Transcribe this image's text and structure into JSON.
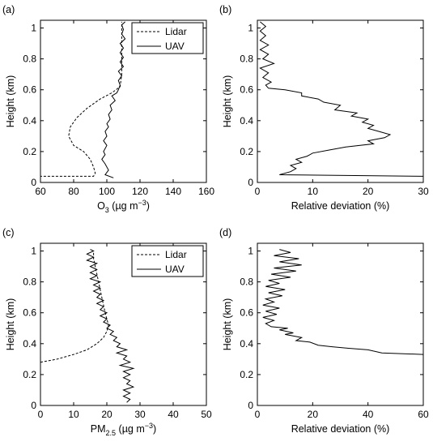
{
  "chart_data": [
    {
      "panel": "(a)",
      "type": "line",
      "xlabel": "O3 (µg m−3)",
      "xlabel_parts": {
        "main": "O",
        "sub": "3",
        "tail": " (µg m",
        "sup": "−3",
        "end": ")"
      },
      "ylabel": "Height (km)",
      "xlim": [
        60,
        160
      ],
      "ylim": [
        0,
        1.05
      ],
      "xticks": [
        "60",
        "80",
        "100",
        "120",
        "140",
        "160"
      ],
      "yticks": [
        "0",
        "0.2",
        "0.4",
        "0.6",
        "0.8",
        "1"
      ],
      "legend": [
        "Lidar",
        "UAV"
      ],
      "legend_position": "top-right",
      "series": [
        {
          "name": "Lidar",
          "style": "dashed",
          "points": [
            [
              57,
              0.04
            ],
            [
              92,
              0.04
            ],
            [
              93,
              0.06
            ],
            [
              92,
              0.1
            ],
            [
              90,
              0.15
            ],
            [
              86,
              0.2
            ],
            [
              80,
              0.24
            ],
            [
              77,
              0.3
            ],
            [
              78,
              0.36
            ],
            [
              82,
              0.42
            ],
            [
              88,
              0.48
            ],
            [
              96,
              0.54
            ],
            [
              103,
              0.58
            ],
            [
              108,
              0.62
            ],
            [
              109,
              0.7
            ],
            [
              109,
              0.8
            ],
            [
              109,
              0.9
            ],
            [
              109,
              1.0
            ],
            [
              109,
              1.04
            ]
          ]
        },
        {
          "name": "UAV",
          "style": "solid",
          "points": [
            [
              104,
              0.03
            ],
            [
              99,
              0.05
            ],
            [
              101,
              0.08
            ],
            [
              99,
              0.12
            ],
            [
              97,
              0.15
            ],
            [
              99,
              0.18
            ],
            [
              98,
              0.2
            ],
            [
              100,
              0.24
            ],
            [
              98,
              0.27
            ],
            [
              100,
              0.3
            ],
            [
              99,
              0.33
            ],
            [
              101,
              0.36
            ],
            [
              100,
              0.38
            ],
            [
              102,
              0.41
            ],
            [
              101,
              0.44
            ],
            [
              103,
              0.47
            ],
            [
              102,
              0.5
            ],
            [
              105,
              0.53
            ],
            [
              103,
              0.56
            ],
            [
              106,
              0.58
            ],
            [
              107,
              0.6
            ],
            [
              108,
              0.63
            ],
            [
              107,
              0.66
            ],
            [
              109,
              0.69
            ],
            [
              107,
              0.72
            ],
            [
              110,
              0.75
            ],
            [
              108,
              0.78
            ],
            [
              110,
              0.81
            ],
            [
              108,
              0.84
            ],
            [
              110,
              0.87
            ],
            [
              108,
              0.9
            ],
            [
              111,
              0.93
            ],
            [
              109,
              0.96
            ],
            [
              110,
              0.99
            ],
            [
              109,
              1.02
            ],
            [
              111,
              1.04
            ]
          ]
        }
      ]
    },
    {
      "panel": "(b)",
      "type": "line",
      "xlabel": "Relative deviation (%)",
      "ylabel": "Height (km)",
      "xlim": [
        0,
        30
      ],
      "ylim": [
        0,
        1.05
      ],
      "xticks": [
        "0",
        "10",
        "20",
        "30"
      ],
      "yticks": [
        "0",
        "0.2",
        "0.4",
        "0.6",
        "0.8",
        "1"
      ],
      "series": [
        {
          "name": "",
          "style": "solid",
          "points": [
            [
              30,
              0.04
            ],
            [
              4,
              0.05
            ],
            [
              6,
              0.07
            ],
            [
              7,
              0.09
            ],
            [
              6,
              0.11
            ],
            [
              8,
              0.13
            ],
            [
              7,
              0.15
            ],
            [
              9,
              0.17
            ],
            [
              10,
              0.19
            ],
            [
              13,
              0.21
            ],
            [
              16,
              0.23
            ],
            [
              21,
              0.25
            ],
            [
              20,
              0.27
            ],
            [
              23,
              0.29
            ],
            [
              24,
              0.31
            ],
            [
              22,
              0.33
            ],
            [
              20,
              0.35
            ],
            [
              21,
              0.37
            ],
            [
              19,
              0.39
            ],
            [
              20,
              0.41
            ],
            [
              17,
              0.43
            ],
            [
              18,
              0.45
            ],
            [
              14,
              0.47
            ],
            [
              15,
              0.5
            ],
            [
              12,
              0.52
            ],
            [
              11,
              0.54
            ],
            [
              8,
              0.56
            ],
            [
              8,
              0.58
            ],
            [
              5,
              0.6
            ],
            [
              2,
              0.61
            ],
            [
              1.5,
              0.63
            ],
            [
              2.5,
              0.65
            ],
            [
              1,
              0.68
            ],
            [
              2,
              0.71
            ],
            [
              0.5,
              0.74
            ],
            [
              3,
              0.77
            ],
            [
              1,
              0.8
            ],
            [
              2,
              0.83
            ],
            [
              0.5,
              0.86
            ],
            [
              2,
              0.89
            ],
            [
              0.5,
              0.92
            ],
            [
              1.5,
              0.95
            ],
            [
              0.5,
              0.98
            ],
            [
              1.5,
              1.01
            ],
            [
              0.5,
              1.04
            ]
          ]
        }
      ]
    },
    {
      "panel": "(c)",
      "type": "line",
      "xlabel": "PM2.5 (µg m−3)",
      "xlabel_parts": {
        "main": "PM",
        "sub": "2.5",
        "tail": " (µg m",
        "sup": "−3",
        "end": ")"
      },
      "ylabel": "Height (km)",
      "xlim": [
        0,
        50
      ],
      "ylim": [
        0,
        1.05
      ],
      "xticks": [
        "0",
        "10",
        "20",
        "30",
        "40",
        "50"
      ],
      "yticks": [
        "0",
        "0.2",
        "0.4",
        "0.6",
        "0.8",
        "1"
      ],
      "legend": [
        "Lidar",
        "UAV"
      ],
      "legend_position": "top-right",
      "series": [
        {
          "name": "Lidar",
          "style": "dashed",
          "points": [
            [
              0,
              0.28
            ],
            [
              5,
              0.3
            ],
            [
              10,
              0.33
            ],
            [
              14,
              0.36
            ],
            [
              17,
              0.4
            ],
            [
              19,
              0.44
            ],
            [
              20,
              0.48
            ],
            [
              20.5,
              0.52
            ],
            [
              20,
              0.56
            ],
            [
              19.5,
              0.6
            ],
            [
              19,
              0.65
            ],
            [
              18.5,
              0.7
            ],
            [
              18,
              0.75
            ],
            [
              17.5,
              0.8
            ],
            [
              17,
              0.85
            ],
            [
              16.5,
              0.9
            ],
            [
              16,
              0.95
            ],
            [
              16,
              1.0
            ]
          ]
        },
        {
          "name": "UAV",
          "style": "solid",
          "points": [
            [
              26,
              0.02
            ],
            [
              27,
              0.04
            ],
            [
              25,
              0.06
            ],
            [
              27,
              0.08
            ],
            [
              25,
              0.1
            ],
            [
              28,
              0.12
            ],
            [
              26,
              0.14
            ],
            [
              27,
              0.16
            ],
            [
              25,
              0.18
            ],
            [
              27,
              0.2
            ],
            [
              25,
              0.22
            ],
            [
              28,
              0.24
            ],
            [
              24,
              0.26
            ],
            [
              27,
              0.28
            ],
            [
              25,
              0.3
            ],
            [
              26,
              0.32
            ],
            [
              23,
              0.34
            ],
            [
              26,
              0.36
            ],
            [
              23,
              0.38
            ],
            [
              24,
              0.4
            ],
            [
              22,
              0.42
            ],
            [
              23,
              0.44
            ],
            [
              21,
              0.46
            ],
            [
              22,
              0.48
            ],
            [
              20,
              0.5
            ],
            [
              21,
              0.52
            ],
            [
              19,
              0.54
            ],
            [
              20,
              0.56
            ],
            [
              18,
              0.58
            ],
            [
              20,
              0.6
            ],
            [
              18,
              0.62
            ],
            [
              19,
              0.64
            ],
            [
              17,
              0.66
            ],
            [
              19,
              0.68
            ],
            [
              17,
              0.7
            ],
            [
              18,
              0.72
            ],
            [
              16,
              0.74
            ],
            [
              18,
              0.76
            ],
            [
              16,
              0.78
            ],
            [
              18,
              0.8
            ],
            [
              15,
              0.82
            ],
            [
              17,
              0.84
            ],
            [
              15,
              0.86
            ],
            [
              17,
              0.88
            ],
            [
              15,
              0.9
            ],
            [
              17,
              0.92
            ],
            [
              14,
              0.94
            ],
            [
              16,
              0.96
            ],
            [
              14,
              0.98
            ],
            [
              16,
              1.0
            ],
            [
              15,
              1.01
            ]
          ]
        }
      ]
    },
    {
      "panel": "(d)",
      "type": "line",
      "xlabel": "Relative deviation (%)",
      "ylabel": "Height (km)",
      "xlim": [
        0,
        60
      ],
      "ylim": [
        0,
        1.05
      ],
      "xticks": [
        "0",
        "20",
        "40",
        "60"
      ],
      "yticks": [
        "0",
        "0.2",
        "0.4",
        "0.6",
        "0.8",
        "1"
      ],
      "series": [
        {
          "name": "",
          "style": "solid",
          "points": [
            [
              60,
              0.33
            ],
            [
              45,
              0.34
            ],
            [
              40,
              0.36
            ],
            [
              33,
              0.37
            ],
            [
              27,
              0.38
            ],
            [
              22,
              0.39
            ],
            [
              19,
              0.41
            ],
            [
              14,
              0.42
            ],
            [
              16,
              0.44
            ],
            [
              10,
              0.46
            ],
            [
              13,
              0.47
            ],
            [
              8,
              0.49
            ],
            [
              11,
              0.5
            ],
            [
              5,
              0.51
            ],
            [
              3,
              0.53
            ],
            [
              6,
              0.55
            ],
            [
              2,
              0.57
            ],
            [
              7,
              0.59
            ],
            [
              3,
              0.61
            ],
            [
              8,
              0.63
            ],
            [
              2,
              0.65
            ],
            [
              6,
              0.67
            ],
            [
              3,
              0.69
            ],
            [
              9,
              0.71
            ],
            [
              4,
              0.73
            ],
            [
              10,
              0.75
            ],
            [
              3,
              0.77
            ],
            [
              8,
              0.79
            ],
            [
              4,
              0.81
            ],
            [
              12,
              0.83
            ],
            [
              5,
              0.85
            ],
            [
              14,
              0.87
            ],
            [
              6,
              0.89
            ],
            [
              16,
              0.91
            ],
            [
              8,
              0.93
            ],
            [
              15,
              0.95
            ],
            [
              6,
              0.97
            ],
            [
              12,
              0.99
            ],
            [
              8,
              1.01
            ]
          ]
        }
      ]
    }
  ]
}
